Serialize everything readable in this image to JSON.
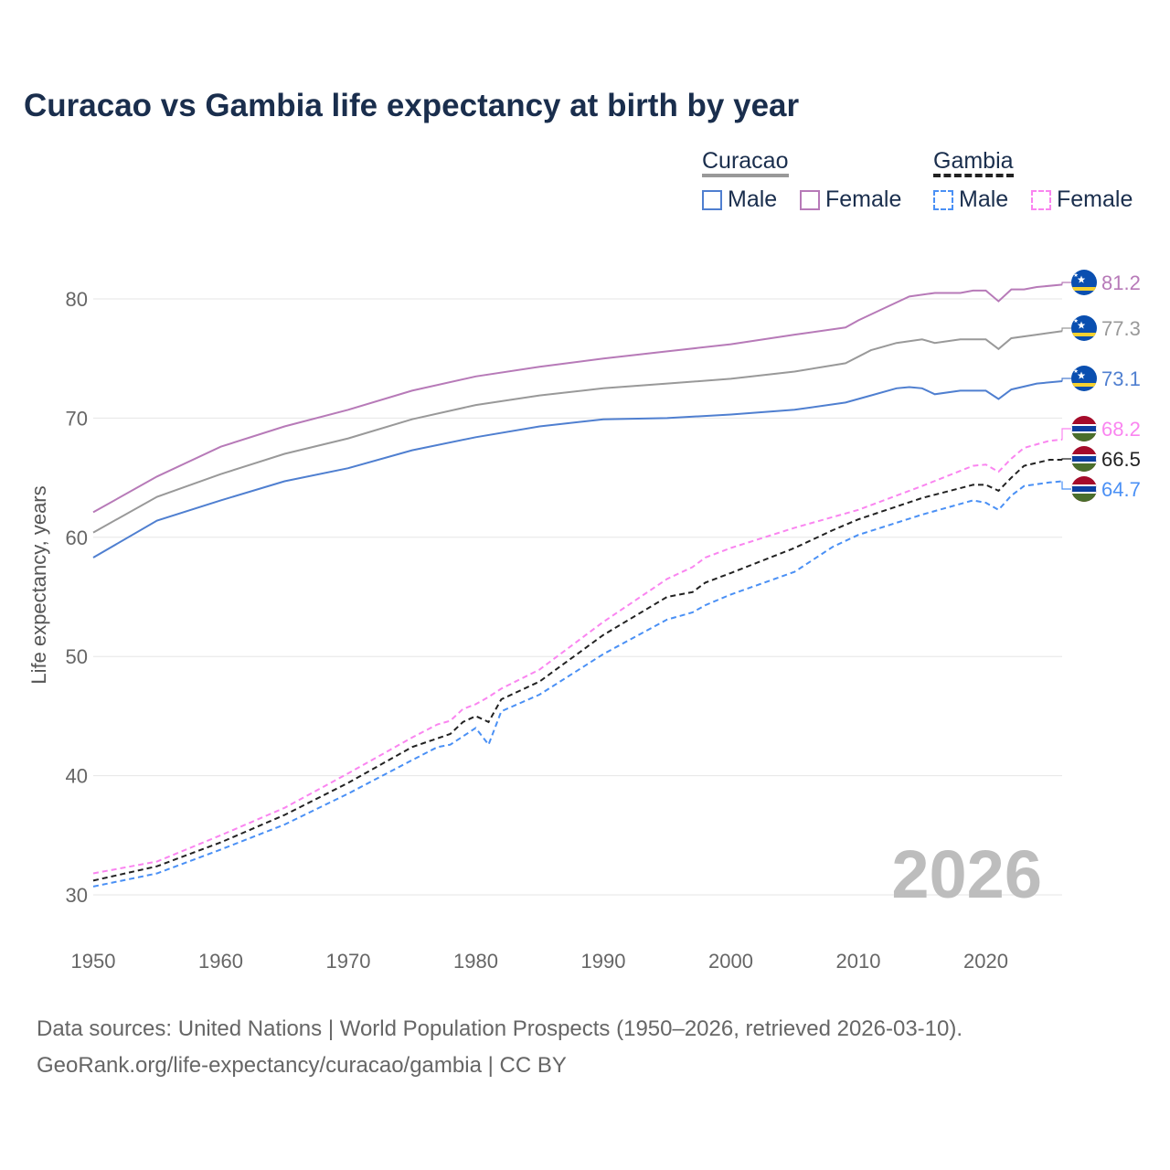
{
  "title": "Curacao vs Gambia life expectancy at birth by year",
  "legend": {
    "groups": [
      {
        "name": "Curacao",
        "style": "solid",
        "color": "#999999",
        "items": [
          {
            "label": "Male",
            "color": "#4f7fd0"
          },
          {
            "label": "Female",
            "color": "#b77ab8"
          }
        ]
      },
      {
        "name": "Gambia",
        "style": "dashed",
        "color": "#222222",
        "items": [
          {
            "label": "Male",
            "color": "#4a90f5"
          },
          {
            "label": "Female",
            "color": "#fa85f0"
          }
        ]
      }
    ]
  },
  "year_watermark": "2026",
  "footer": {
    "line1": "Data sources: United Nations | World Population Prospects (1950–2026, retrieved 2026-03-10).",
    "line2": "GeoRank.org/life-expectancy/curacao/gambia | CC BY"
  },
  "chart_data": {
    "type": "line",
    "title": "Curacao vs Gambia life expectancy at birth by year",
    "xlabel": "",
    "ylabel": "Life expectancy, years",
    "xlim": [
      1950,
      2026
    ],
    "ylim": [
      28,
      84
    ],
    "xticks": [
      "1950",
      "1960",
      "1970",
      "1980",
      "1990",
      "2000",
      "2010",
      "2020"
    ],
    "yticks": [
      "30",
      "40",
      "50",
      "60",
      "70",
      "80"
    ],
    "grid": "horizontal",
    "legend_placement": "top-right",
    "series": [
      {
        "name": "Curacao Female",
        "country": "Curacao",
        "sex": "Female",
        "dash": false,
        "color": "#b77ab8",
        "end_label": "81.2",
        "x": [
          1950,
          1955,
          1960,
          1965,
          1970,
          1975,
          1980,
          1985,
          1990,
          1995,
          2000,
          2005,
          2009,
          2010,
          2012,
          2014,
          2016,
          2018,
          2019,
          2020,
          2021,
          2022,
          2023,
          2024,
          2026
        ],
        "y": [
          62.1,
          65.1,
          67.6,
          69.3,
          70.7,
          72.3,
          73.5,
          74.3,
          75.0,
          75.6,
          76.2,
          77.0,
          77.6,
          78.2,
          79.2,
          80.2,
          80.5,
          80.5,
          80.7,
          80.7,
          79.8,
          80.8,
          80.8,
          81.0,
          81.2
        ]
      },
      {
        "name": "Curacao Total",
        "country": "Curacao",
        "sex": "Total",
        "dash": false,
        "color": "#999999",
        "end_label": "77.3",
        "x": [
          1950,
          1955,
          1960,
          1965,
          1970,
          1975,
          1980,
          1985,
          1990,
          1995,
          2000,
          2005,
          2009,
          2011,
          2013,
          2015,
          2016,
          2018,
          2020,
          2021,
          2022,
          2024,
          2026
        ],
        "y": [
          60.4,
          63.4,
          65.3,
          67.0,
          68.3,
          69.9,
          71.1,
          71.9,
          72.5,
          72.9,
          73.3,
          73.9,
          74.6,
          75.7,
          76.3,
          76.6,
          76.3,
          76.6,
          76.6,
          75.8,
          76.7,
          77.0,
          77.3
        ]
      },
      {
        "name": "Curacao Male",
        "country": "Curacao",
        "sex": "Male",
        "dash": false,
        "color": "#4f7fd0",
        "end_label": "73.1",
        "x": [
          1950,
          1955,
          1960,
          1965,
          1970,
          1975,
          1980,
          1985,
          1990,
          1995,
          2000,
          2005,
          2009,
          2011,
          2013,
          2014,
          2015,
          2016,
          2018,
          2020,
          2021,
          2022,
          2024,
          2026
        ],
        "y": [
          58.3,
          61.4,
          63.1,
          64.7,
          65.8,
          67.3,
          68.4,
          69.3,
          69.9,
          70.0,
          70.3,
          70.7,
          71.3,
          71.9,
          72.5,
          72.6,
          72.5,
          72.0,
          72.3,
          72.3,
          71.6,
          72.4,
          72.9,
          73.1
        ]
      },
      {
        "name": "Gambia Female",
        "country": "Gambia",
        "sex": "Female",
        "dash": true,
        "color": "#fa85f0",
        "end_label": "68.2",
        "x": [
          1950,
          1955,
          1960,
          1965,
          1970,
          1975,
          1977,
          1978,
          1979,
          1980,
          1981,
          1982,
          1985,
          1990,
          1995,
          1997,
          1998,
          2000,
          2005,
          2010,
          2015,
          2019,
          2020,
          2021,
          2022,
          2023,
          2025,
          2026
        ],
        "y": [
          31.8,
          32.8,
          35.0,
          37.3,
          40.2,
          43.2,
          44.3,
          44.6,
          45.6,
          46.0,
          46.6,
          47.3,
          48.9,
          52.9,
          56.5,
          57.5,
          58.3,
          59.1,
          60.8,
          62.3,
          64.3,
          66.0,
          66.1,
          65.5,
          66.6,
          67.5,
          68.1,
          68.2
        ]
      },
      {
        "name": "Gambia Total",
        "country": "Gambia",
        "sex": "Total",
        "dash": true,
        "color": "#222222",
        "end_label": "66.5",
        "x": [
          1950,
          1955,
          1960,
          1965,
          1970,
          1975,
          1978,
          1979,
          1980,
          1981,
          1982,
          1985,
          1990,
          1995,
          1997,
          1998,
          2000,
          2005,
          2008,
          2010,
          2015,
          2019,
          2020,
          2021,
          2022,
          2023,
          2025,
          2026
        ],
        "y": [
          31.2,
          32.4,
          34.4,
          36.7,
          39.4,
          42.4,
          43.5,
          44.5,
          45.0,
          44.5,
          46.4,
          47.9,
          51.8,
          55.0,
          55.4,
          56.2,
          57.0,
          59.1,
          60.6,
          61.5,
          63.3,
          64.4,
          64.4,
          63.9,
          65.0,
          66.0,
          66.5,
          66.5
        ]
      },
      {
        "name": "Gambia Male",
        "country": "Gambia",
        "sex": "Male",
        "dash": true,
        "color": "#4a90f5",
        "end_label": "64.7",
        "x": [
          1950,
          1955,
          1960,
          1965,
          1970,
          1975,
          1977,
          1978,
          1980,
          1981,
          1982,
          1985,
          1990,
          1995,
          1997,
          1998,
          2000,
          2005,
          2008,
          2010,
          2015,
          2019,
          2020,
          2021,
          2022,
          2023,
          2025,
          2026
        ],
        "y": [
          30.7,
          31.8,
          33.8,
          35.9,
          38.5,
          41.3,
          42.4,
          42.6,
          44.0,
          42.6,
          45.4,
          46.8,
          50.2,
          53.1,
          53.7,
          54.3,
          55.2,
          57.1,
          59.2,
          60.2,
          61.9,
          63.1,
          62.9,
          62.3,
          63.5,
          64.3,
          64.6,
          64.7
        ]
      }
    ]
  }
}
